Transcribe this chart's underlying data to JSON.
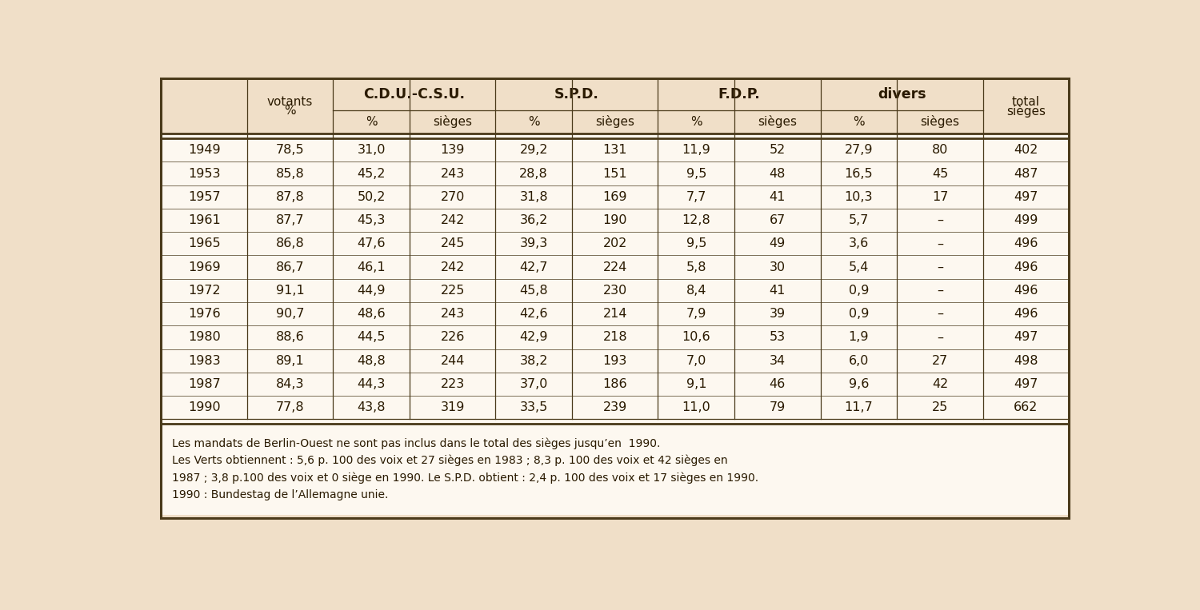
{
  "bg_color": "#f0dfc8",
  "border_color": "#4a3a1a",
  "text_color": "#2a1a00",
  "cell_bg": "#fdf8f0",
  "header_bg": "#f0dfc8",
  "col_groups": [
    "C.D.U.-C.S.U.",
    "S.P.D.",
    "F.D.P.",
    "divers"
  ],
  "col1_header_line1": "votants",
  "col1_header_line2": "%",
  "last_col_header_line1": "total",
  "last_col_header_line2": "sièges",
  "sub_header_pct": "%",
  "sub_header_sieg": "sièges",
  "years": [
    "1949",
    "1953",
    "1957",
    "1961",
    "1965",
    "1969",
    "1972",
    "1976",
    "1980",
    "1983",
    "1987",
    "1990"
  ],
  "votants": [
    "78,5",
    "85,8",
    "87,8",
    "87,7",
    "86,8",
    "86,7",
    "91,1",
    "90,7",
    "88,6",
    "89,1",
    "84,3",
    "77,8"
  ],
  "cdu_pct": [
    "31,0",
    "45,2",
    "50,2",
    "45,3",
    "47,6",
    "46,1",
    "44,9",
    "48,6",
    "44,5",
    "48,8",
    "44,3",
    "43,8"
  ],
  "cdu_sieg": [
    "139",
    "243",
    "270",
    "242",
    "245",
    "242",
    "225",
    "243",
    "226",
    "244",
    "223",
    "319"
  ],
  "spd_pct": [
    "29,2",
    "28,8",
    "31,8",
    "36,2",
    "39,3",
    "42,7",
    "45,8",
    "42,6",
    "42,9",
    "38,2",
    "37,0",
    "33,5"
  ],
  "spd_sieg": [
    "131",
    "151",
    "169",
    "190",
    "202",
    "224",
    "230",
    "214",
    "218",
    "193",
    "186",
    "239"
  ],
  "fdp_pct": [
    "11,9",
    "9,5",
    "7,7",
    "12,8",
    "9,5",
    "5,8",
    "8,4",
    "7,9",
    "10,6",
    "7,0",
    "9,1",
    "11,0"
  ],
  "fdp_sieg": [
    "52",
    "48",
    "41",
    "67",
    "49",
    "30",
    "41",
    "39",
    "53",
    "34",
    "46",
    "79"
  ],
  "div_pct": [
    "27,9",
    "16,5",
    "10,3",
    "5,7",
    "3,6",
    "5,4",
    "0,9",
    "0,9",
    "1,9",
    "6,0",
    "9,6",
    "11,7"
  ],
  "div_sieg": [
    "80",
    "45",
    "17",
    "–",
    "–",
    "–",
    "–",
    "–",
    "–",
    "27",
    "42",
    "25"
  ],
  "total_sieg": [
    "402",
    "487",
    "497",
    "499",
    "496",
    "496",
    "496",
    "496",
    "497",
    "498",
    "497",
    "662"
  ],
  "footnote_lines": [
    "Les mandats de Berlin-Ouest ne sont pas inclus dans le total des sièges jusqu’en  1990.",
    "Les Verts obtiennent : 5,6 p. 100 des voix et 27 sièges en 1983 ; 8,3 p. 100 des voix et 42 sièges en",
    "1987 ; 3,8 p.100 des voix et 0 siège en 1990. Le S.P.D. obtient : 2,4 p. 100 des voix et 17 sièges en 1990.",
    "1990 : Bundestag de l’Allemagne unie."
  ]
}
